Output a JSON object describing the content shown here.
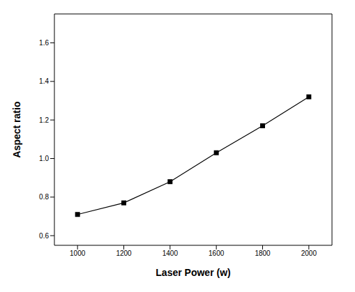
{
  "chart_data": {
    "type": "line",
    "x_label": "Laser Power (w)",
    "y_label": "Aspect ratio",
    "x": [
      1000,
      1200,
      1400,
      1600,
      1800,
      2000
    ],
    "values": [
      0.71,
      0.77,
      0.88,
      1.03,
      1.17,
      1.32
    ],
    "color": "#000000",
    "marker": "square",
    "line_style": "solid",
    "xlim": [
      900,
      2100
    ],
    "xticks": [
      1000,
      1200,
      1400,
      1600,
      1800,
      2000
    ],
    "ylim": [
      0.55,
      1.75
    ],
    "yticks": [
      0.6,
      0.8,
      {
        "value": 1,
        "label": "1.0"
      },
      1.2,
      1.4,
      1.6
    ],
    "grid": false
  }
}
